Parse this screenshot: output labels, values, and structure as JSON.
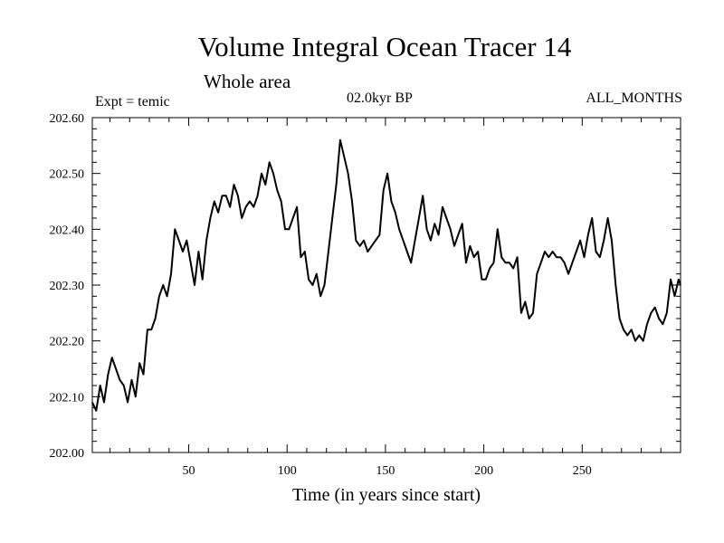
{
  "chart_data": {
    "type": "line",
    "title": "Volume Integral Ocean Tracer 14",
    "subtitle": "Whole area",
    "annotations": {
      "left": "Expt = temic",
      "center": "02.0kyr BP",
      "right": "ALL_MONTHS"
    },
    "xlabel": "Time (in years since start)",
    "ylabel": "",
    "xlim": [
      1,
      300
    ],
    "ylim": [
      202.0,
      202.6
    ],
    "xticks": [
      50,
      100,
      150,
      200,
      250
    ],
    "yticks": [
      202.0,
      202.1,
      202.2,
      202.3,
      202.4,
      202.5,
      202.6
    ],
    "ytick_labels": [
      "202.00",
      "202.10",
      "202.20",
      "202.30",
      "202.40",
      "202.50",
      "202.60"
    ],
    "grid": false,
    "series": [
      {
        "name": "Tracer 14",
        "color": "#000000",
        "x": [
          1,
          3,
          5,
          7,
          9,
          11,
          13,
          15,
          17,
          19,
          21,
          23,
          25,
          27,
          29,
          31,
          33,
          35,
          37,
          39,
          41,
          43,
          45,
          47,
          49,
          51,
          53,
          55,
          57,
          59,
          61,
          63,
          65,
          67,
          69,
          71,
          73,
          75,
          77,
          79,
          81,
          83,
          85,
          87,
          89,
          91,
          93,
          95,
          97,
          99,
          101,
          103,
          105,
          107,
          109,
          111,
          113,
          115,
          117,
          119,
          121,
          123,
          125,
          127,
          129,
          131,
          133,
          135,
          137,
          139,
          141,
          143,
          145,
          147,
          149,
          151,
          153,
          155,
          157,
          159,
          161,
          163,
          165,
          167,
          169,
          171,
          173,
          175,
          177,
          179,
          181,
          183,
          185,
          187,
          189,
          191,
          193,
          195,
          197,
          199,
          201,
          203,
          205,
          207,
          209,
          211,
          213,
          215,
          217,
          219,
          221,
          223,
          225,
          227,
          229,
          231,
          233,
          235,
          237,
          239,
          241,
          243,
          245,
          247,
          249,
          251,
          253,
          255,
          257,
          259,
          261,
          263,
          265,
          267,
          269,
          271,
          273,
          275,
          277,
          279,
          281,
          283,
          285,
          287,
          289,
          291,
          293,
          295,
          297,
          299,
          300
        ],
        "values": [
          202.09,
          202.075,
          202.12,
          202.09,
          202.14,
          202.17,
          202.15,
          202.13,
          202.12,
          202.09,
          202.13,
          202.1,
          202.16,
          202.14,
          202.22,
          202.22,
          202.24,
          202.28,
          202.3,
          202.28,
          202.32,
          202.4,
          202.38,
          202.36,
          202.38,
          202.34,
          202.3,
          202.36,
          202.31,
          202.38,
          202.42,
          202.45,
          202.43,
          202.46,
          202.46,
          202.44,
          202.48,
          202.46,
          202.42,
          202.44,
          202.45,
          202.44,
          202.46,
          202.5,
          202.48,
          202.52,
          202.5,
          202.47,
          202.45,
          202.4,
          202.4,
          202.42,
          202.44,
          202.35,
          202.36,
          202.31,
          202.3,
          202.32,
          202.28,
          202.3,
          202.36,
          202.42,
          202.48,
          202.56,
          202.53,
          202.5,
          202.45,
          202.38,
          202.37,
          202.38,
          202.36,
          202.37,
          202.38,
          202.39,
          202.47,
          202.5,
          202.45,
          202.43,
          202.4,
          202.38,
          202.36,
          202.34,
          202.38,
          202.42,
          202.46,
          202.4,
          202.38,
          202.41,
          202.39,
          202.44,
          202.42,
          202.4,
          202.37,
          202.39,
          202.41,
          202.34,
          202.37,
          202.35,
          202.36,
          202.31,
          202.31,
          202.33,
          202.34,
          202.4,
          202.35,
          202.34,
          202.34,
          202.33,
          202.35,
          202.25,
          202.27,
          202.24,
          202.25,
          202.32,
          202.34,
          202.36,
          202.35,
          202.36,
          202.35,
          202.35,
          202.34,
          202.32,
          202.34,
          202.36,
          202.38,
          202.35,
          202.39,
          202.42,
          202.36,
          202.35,
          202.38,
          202.42,
          202.38,
          202.3,
          202.24,
          202.22,
          202.21,
          202.22,
          202.2,
          202.21,
          202.2,
          202.23,
          202.25,
          202.26,
          202.24,
          202.23,
          202.25,
          202.31,
          202.28,
          202.31,
          202.3
        ]
      }
    ]
  }
}
